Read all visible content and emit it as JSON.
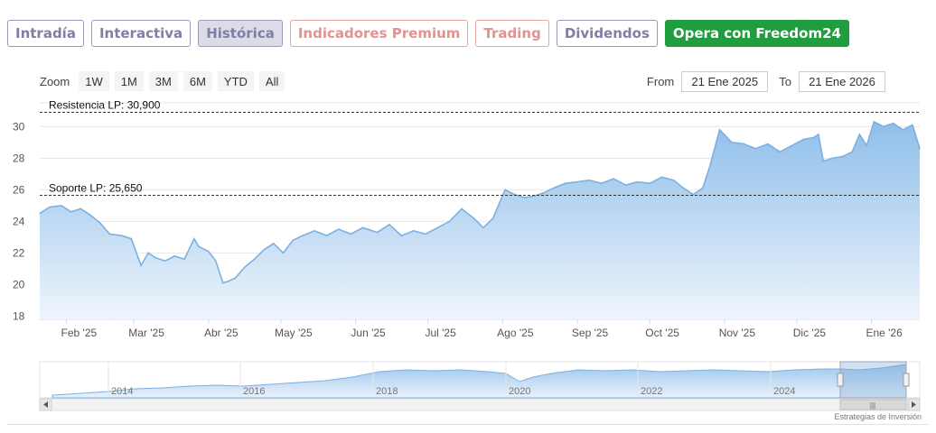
{
  "tabs": [
    {
      "label": "Intradía",
      "style": "normal"
    },
    {
      "label": "Interactiva",
      "style": "normal"
    },
    {
      "label": "Histórica",
      "style": "active"
    },
    {
      "label": "Indicadores Premium",
      "style": "premium"
    },
    {
      "label": "Trading",
      "style": "premium"
    },
    {
      "label": "Dividendos",
      "style": "normal"
    },
    {
      "label": "Opera con Freedom24",
      "style": "cta"
    }
  ],
  "zoom": {
    "label": "Zoom",
    "buttons": [
      "1W",
      "1M",
      "3M",
      "6M",
      "YTD",
      "All"
    ]
  },
  "range": {
    "from_label": "From",
    "from_value": "21 Ene 2025",
    "to_label": "To",
    "to_value": "21 Ene 2026"
  },
  "credit": "Estrategias de Inversión",
  "navigator_labels": [
    "2014",
    "2016",
    "2018",
    "2020",
    "2022",
    "2024"
  ],
  "colors": {
    "line": "#7cb0e0",
    "fill_top": "#8fbeea",
    "fill_bottom": "#eef5fc",
    "grid": "#e6e6e6",
    "level_line": "#333333"
  },
  "chart_data": {
    "type": "area",
    "ylim": [
      17.8,
      31.5
    ],
    "y_ticks": [
      18,
      20,
      22,
      24,
      26,
      28,
      30
    ],
    "x_tick_labels": [
      "Feb '25",
      "Mar '25",
      "Abr '25",
      "May '25",
      "Jun '25",
      "Jul '25",
      "Ago '25",
      "Sep '25",
      "Oct '25",
      "Nov '25",
      "Dic '25",
      "Ene '26"
    ],
    "x_tick_dates": [
      "2025-02-01",
      "2025-03-01",
      "2025-04-01",
      "2025-05-01",
      "2025-06-01",
      "2025-07-01",
      "2025-08-01",
      "2025-09-01",
      "2025-10-01",
      "2025-11-01",
      "2025-12-01",
      "2026-01-01"
    ],
    "x_range": [
      "2025-01-21",
      "2026-01-21"
    ],
    "annotations": [
      {
        "label": "Resistencia LP: 30,900",
        "value": 30.9
      },
      {
        "label": "Soporte LP: 25,650",
        "value": 25.65
      }
    ],
    "series": [
      {
        "x": [
          "2025-01-21",
          "2025-01-25",
          "2025-01-30",
          "2025-02-03",
          "2025-02-07",
          "2025-02-11",
          "2025-02-15",
          "2025-02-19",
          "2025-02-24",
          "2025-02-28",
          "2025-03-04",
          "2025-03-07",
          "2025-03-10",
          "2025-03-14",
          "2025-03-18",
          "2025-03-22",
          "2025-03-26",
          "2025-03-28",
          "2025-04-01",
          "2025-04-04",
          "2025-04-07",
          "2025-04-09",
          "2025-04-12",
          "2025-04-16",
          "2025-04-20",
          "2025-04-24",
          "2025-04-28",
          "2025-05-02",
          "2025-05-06",
          "2025-05-10",
          "2025-05-15",
          "2025-05-20",
          "2025-05-25",
          "2025-05-30",
          "2025-06-04",
          "2025-06-10",
          "2025-06-15",
          "2025-06-20",
          "2025-06-25",
          "2025-06-30",
          "2025-07-05",
          "2025-07-10",
          "2025-07-15",
          "2025-07-20",
          "2025-07-24",
          "2025-07-28",
          "2025-08-02",
          "2025-08-06",
          "2025-08-10",
          "2025-08-14",
          "2025-08-18",
          "2025-08-22",
          "2025-08-27",
          "2025-09-01",
          "2025-09-06",
          "2025-09-11",
          "2025-09-16",
          "2025-09-21",
          "2025-09-26",
          "2025-10-01",
          "2025-10-06",
          "2025-10-11",
          "2025-10-15",
          "2025-10-19",
          "2025-10-23",
          "2025-10-26",
          "2025-10-30",
          "2025-11-04",
          "2025-11-09",
          "2025-11-14",
          "2025-11-19",
          "2025-11-24",
          "2025-11-29",
          "2025-12-04",
          "2025-12-08",
          "2025-12-10",
          "2025-12-12",
          "2025-12-16",
          "2025-12-20",
          "2025-12-24",
          "2025-12-27",
          "2025-12-30",
          "2026-01-02",
          "2026-01-06",
          "2026-01-10",
          "2026-01-14",
          "2026-01-18",
          "2026-01-21"
        ],
        "values": [
          24.5,
          24.9,
          25.0,
          24.6,
          24.8,
          24.4,
          23.9,
          23.2,
          23.1,
          22.9,
          21.2,
          22.0,
          21.7,
          21.5,
          21.8,
          21.6,
          22.9,
          22.4,
          22.1,
          21.5,
          20.1,
          20.2,
          20.4,
          21.1,
          21.6,
          22.2,
          22.6,
          22.0,
          22.8,
          23.1,
          23.4,
          23.1,
          23.5,
          23.2,
          23.6,
          23.3,
          23.8,
          23.1,
          23.4,
          23.2,
          23.6,
          24.0,
          24.8,
          24.2,
          23.6,
          24.2,
          26.0,
          25.7,
          25.5,
          25.6,
          25.8,
          26.1,
          26.4,
          26.5,
          26.6,
          26.4,
          26.7,
          26.3,
          26.5,
          26.4,
          26.8,
          26.6,
          26.1,
          25.7,
          26.1,
          27.5,
          29.8,
          29.0,
          28.9,
          28.6,
          28.9,
          28.4,
          28.8,
          29.2,
          29.3,
          29.5,
          27.8,
          28.0,
          28.1,
          28.4,
          29.5,
          28.8,
          30.3,
          30.0,
          30.2,
          29.8,
          30.1,
          28.6
        ]
      }
    ]
  }
}
